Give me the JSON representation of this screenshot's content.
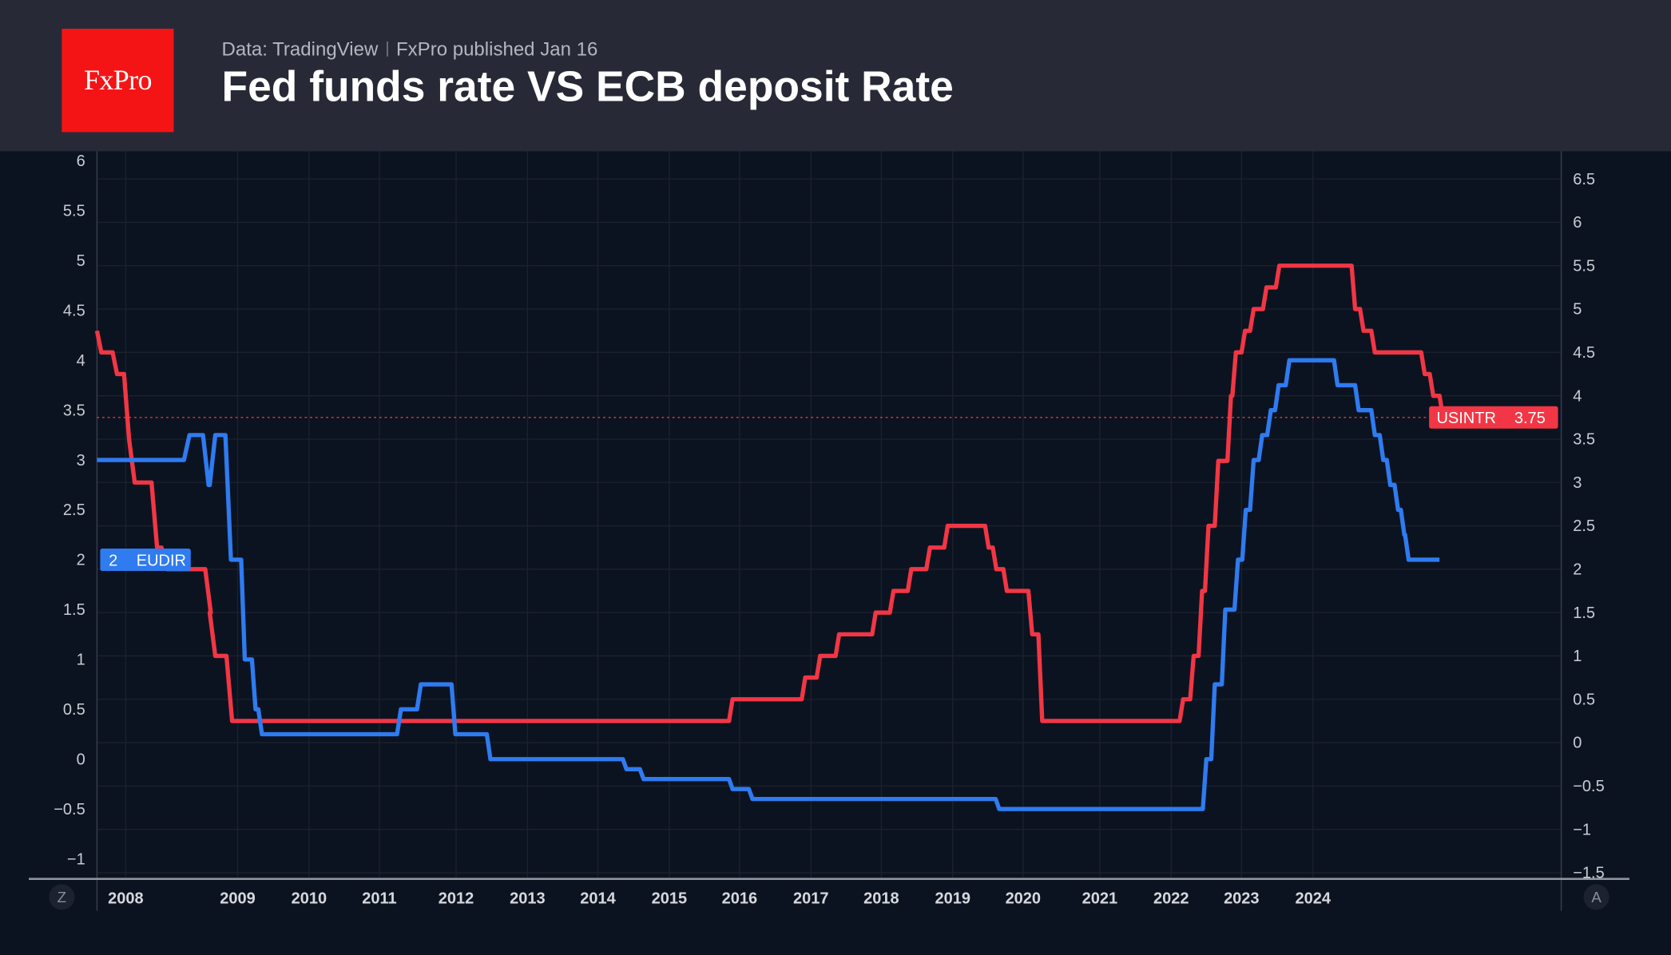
{
  "header": {
    "logo_text": "FxPro",
    "source": "Data: TradingView",
    "published": "FxPro published Jan 16",
    "title": "Fed funds rate VS ECB deposit Rate"
  },
  "controls": {
    "left_button": "Z",
    "right_button": "A"
  },
  "colors": {
    "background": "#0c1320",
    "header": "#272a36",
    "fed": "#f23645",
    "ecb": "#2f7bf0",
    "logo": "#f41415"
  },
  "chart_data": {
    "type": "line",
    "title": "Fed funds rate VS ECB deposit Rate",
    "x_ticks": [
      {
        "label": "2008",
        "t": 2008
      },
      {
        "label": "2009",
        "t": 2009
      },
      {
        "label": "2010",
        "t": 2010
      },
      {
        "label": "2011",
        "t": 2011
      },
      {
        "label": "2012",
        "t": 2012
      },
      {
        "label": "2013",
        "t": 2013
      },
      {
        "label": "2014",
        "t": 2014
      },
      {
        "label": "2015",
        "t": 2015
      },
      {
        "label": "2016",
        "t": 2016
      },
      {
        "label": "2017",
        "t": 2017
      },
      {
        "label": "2018",
        "t": 2018
      },
      {
        "label": "2019",
        "t": 2019
      },
      {
        "label": "2020",
        "t": 2020
      },
      {
        "label": "2021",
        "t": 2021
      },
      {
        "label": "2022",
        "t": 2022
      },
      {
        "label": "2023",
        "t": 2023
      },
      {
        "label": "2024",
        "t": 2024
      }
    ],
    "left_axis": {
      "ylim": [
        -1,
        6
      ],
      "ticks": [
        "6",
        "5.5",
        "5",
        "4.5",
        "4",
        "3.5",
        "3",
        "2.5",
        "2",
        "1.5",
        "1",
        "0.5",
        "0",
        "−0.5",
        "−1"
      ],
      "tick_values": [
        6,
        5.5,
        5,
        4.5,
        4,
        3.5,
        3,
        2.5,
        2,
        1.5,
        1,
        0.5,
        0,
        -0.5,
        -1
      ]
    },
    "right_axis": {
      "ylim": [
        -1.5,
        6.5
      ],
      "ticks": [
        "6.5",
        "6",
        "5.5",
        "5",
        "4.5",
        "4",
        "3.5",
        "3",
        "2.5",
        "2",
        "1.5",
        "1",
        "0.5",
        "0",
        "−0.5",
        "−1",
        "−1.5"
      ],
      "tick_values": [
        6.5,
        6,
        5.5,
        5,
        4.5,
        4,
        3.5,
        3,
        2.5,
        2,
        1.5,
        1,
        0.5,
        0,
        -0.5,
        -1,
        -1.5
      ]
    },
    "series": [
      {
        "name": "USINTR",
        "axis": "right",
        "color": "#f23645",
        "last_value": "3.75",
        "last": 3.75,
        "start": 2007.67,
        "end": 2025.85,
        "initial": 4.75,
        "steps": [
          [
            2007.72,
            4.5
          ],
          [
            2007.9,
            4.25
          ],
          [
            2008.03,
            3.5
          ],
          [
            2008.08,
            3.0
          ],
          [
            2008.28,
            2.25
          ],
          [
            2008.37,
            2.0
          ],
          [
            2008.76,
            1.5
          ],
          [
            2008.8,
            1.0
          ],
          [
            2008.95,
            0.25
          ],
          [
            2015.9,
            0.5
          ],
          [
            2016.92,
            0.75
          ],
          [
            2017.13,
            1.0
          ],
          [
            2017.4,
            1.25
          ],
          [
            2017.92,
            1.5
          ],
          [
            2018.17,
            1.75
          ],
          [
            2018.42,
            2.0
          ],
          [
            2018.68,
            2.25
          ],
          [
            2018.93,
            2.5
          ],
          [
            2019.51,
            2.25
          ],
          [
            2019.62,
            2.0
          ],
          [
            2019.77,
            1.75
          ],
          [
            2020.12,
            1.25
          ],
          [
            2020.25,
            0.25
          ],
          [
            2022.17,
            0.5
          ],
          [
            2022.32,
            1.0
          ],
          [
            2022.44,
            1.75
          ],
          [
            2022.53,
            2.5
          ],
          [
            2022.67,
            3.25
          ],
          [
            2022.85,
            4.0
          ],
          [
            2022.92,
            4.5
          ],
          [
            2023.05,
            4.75
          ],
          [
            2023.17,
            5.0
          ],
          [
            2023.35,
            5.25
          ],
          [
            2023.53,
            5.5
          ],
          [
            2024.6,
            5.0
          ],
          [
            2024.72,
            4.75
          ],
          [
            2024.88,
            4.5
          ],
          [
            2025.59,
            4.25
          ],
          [
            2025.71,
            4.0
          ],
          [
            2025.85,
            3.75
          ]
        ]
      },
      {
        "name": "EUDIR",
        "axis": "left",
        "color": "#2f7bf0",
        "last_value": "2",
        "last": 2.0,
        "start": 2007.67,
        "end": 2025.8,
        "initial": 3.0,
        "steps": [
          [
            2008.57,
            3.25
          ],
          [
            2008.74,
            2.75
          ],
          [
            2008.8,
            3.25
          ],
          [
            2008.94,
            2.0
          ],
          [
            2009.1,
            1.0
          ],
          [
            2009.25,
            0.5
          ],
          [
            2009.34,
            0.25
          ],
          [
            2011.28,
            0.5
          ],
          [
            2011.54,
            0.75
          ],
          [
            2011.99,
            0.25
          ],
          [
            2012.48,
            0.0
          ],
          [
            2014.4,
            -0.1
          ],
          [
            2014.64,
            -0.2
          ],
          [
            2015.9,
            -0.3
          ],
          [
            2016.18,
            -0.4
          ],
          [
            2019.66,
            -0.5
          ],
          [
            2022.5,
            0.0
          ],
          [
            2022.62,
            0.75
          ],
          [
            2022.77,
            1.5
          ],
          [
            2022.95,
            2.0
          ],
          [
            2023.06,
            2.5
          ],
          [
            2023.17,
            3.0
          ],
          [
            2023.29,
            3.25
          ],
          [
            2023.41,
            3.5
          ],
          [
            2023.52,
            3.75
          ],
          [
            2023.67,
            4.0
          ],
          [
            2024.35,
            3.75
          ],
          [
            2024.65,
            3.5
          ],
          [
            2024.88,
            3.25
          ],
          [
            2025.0,
            3.0
          ],
          [
            2025.1,
            2.75
          ],
          [
            2025.21,
            2.5
          ],
          [
            2025.3,
            2.25
          ],
          [
            2025.36,
            2.0
          ]
        ]
      }
    ],
    "legend": "axis tags (left: EUDIR, right: USINTR)",
    "grid": true
  }
}
